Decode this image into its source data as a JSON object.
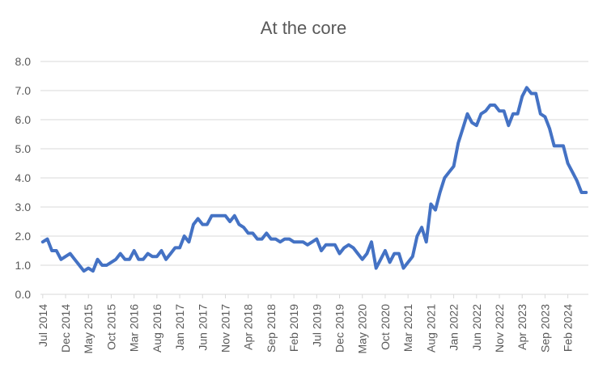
{
  "chart_data": {
    "type": "line",
    "title": "At the core",
    "xlabel": "",
    "ylabel": "",
    "ylim": [
      0.0,
      8.0
    ],
    "y_ticks": [
      "0.0",
      "1.0",
      "2.0",
      "3.0",
      "4.0",
      "5.0",
      "6.0",
      "7.0",
      "8.0"
    ],
    "x_tick_labels": [
      "Jul 2014",
      "Dec 2014",
      "May 2015",
      "Oct 2015",
      "Mar 2016",
      "Aug 2016",
      "Jan 2017",
      "Jun 2017",
      "Nov 2017",
      "Apr 2018",
      "Sep 2018",
      "Feb 2019",
      "Jul 2019",
      "Dec 2019",
      "May 2020",
      "Oct 2020",
      "Mar 2021",
      "Aug 2021",
      "Jan 2022",
      "Jun 2022",
      "Nov 2022",
      "Apr 2023",
      "Sep 2023",
      "Feb 2024"
    ],
    "start_month": "Jul 2014",
    "grid": true,
    "legend": "none",
    "line_color": "#4472C4",
    "series": [
      {
        "name": "",
        "values": [
          1.8,
          1.9,
          1.5,
          1.5,
          1.2,
          1.3,
          1.4,
          1.2,
          1.0,
          0.8,
          0.9,
          0.8,
          1.2,
          1.0,
          1.0,
          1.1,
          1.2,
          1.4,
          1.2,
          1.2,
          1.5,
          1.2,
          1.2,
          1.4,
          1.3,
          1.3,
          1.5,
          1.2,
          1.4,
          1.6,
          1.6,
          2.0,
          1.8,
          2.4,
          2.6,
          2.4,
          2.4,
          2.7,
          2.7,
          2.7,
          2.7,
          2.5,
          2.7,
          2.4,
          2.3,
          2.1,
          2.1,
          1.9,
          1.9,
          2.1,
          1.9,
          1.9,
          1.8,
          1.9,
          1.9,
          1.8,
          1.8,
          1.8,
          1.7,
          1.8,
          1.9,
          1.5,
          1.7,
          1.7,
          1.7,
          1.4,
          1.6,
          1.7,
          1.6,
          1.4,
          1.2,
          1.4,
          1.8,
          0.9,
          1.2,
          1.5,
          1.1,
          1.4,
          1.4,
          0.9,
          1.1,
          1.3,
          2.0,
          2.3,
          1.8,
          3.1,
          2.9,
          3.5,
          4.0,
          4.2,
          4.4,
          5.2,
          5.7,
          6.2,
          5.9,
          5.8,
          6.2,
          6.3,
          6.5,
          6.5,
          6.3,
          6.3,
          5.8,
          6.2,
          6.2,
          6.8,
          7.1,
          6.9,
          6.9,
          6.2,
          6.1,
          5.7,
          5.1,
          5.1,
          5.1,
          4.5,
          4.2,
          3.9,
          3.5,
          3.5
        ]
      }
    ]
  }
}
